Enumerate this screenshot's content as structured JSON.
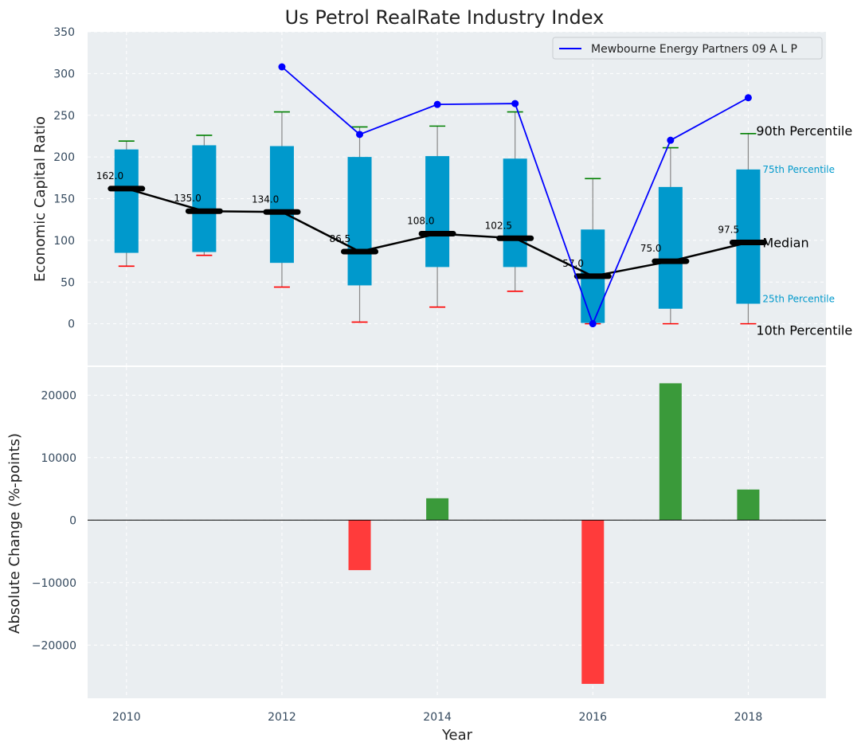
{
  "chart_data": {
    "type": "boxplot_with_line_and_bar",
    "title": "Us Petrol RealRate Industry Index",
    "xlabel": "Year",
    "x_ticks": [
      2010,
      2012,
      2014,
      2016,
      2018
    ],
    "xlim": [
      2009.5,
      2019
    ],
    "top": {
      "ylabel": "Economic Capital Ratio",
      "ylim": [
        -50,
        350
      ],
      "y_ticks": [
        0,
        50,
        100,
        150,
        200,
        250,
        300,
        350
      ],
      "years": [
        2010,
        2011,
        2012,
        2013,
        2014,
        2015,
        2016,
        2017,
        2018
      ],
      "p10": [
        69,
        82,
        44,
        2,
        20,
        39,
        0,
        0,
        0
      ],
      "p25": [
        85,
        86,
        73,
        46,
        68,
        68,
        1,
        18,
        24
      ],
      "median": [
        162.0,
        135.0,
        134.0,
        86.5,
        108.0,
        102.5,
        57.0,
        75.0,
        97.5
      ],
      "median_labels": [
        "162.0",
        "135.0",
        "134.0",
        "86.5",
        "108.0",
        "102.5",
        "57.0",
        "75.0",
        "97.5"
      ],
      "p75": [
        209,
        214,
        213,
        200,
        201,
        198,
        113,
        164,
        185
      ],
      "p90": [
        219,
        226,
        254,
        236,
        237,
        254,
        174,
        211,
        228
      ],
      "company_series": {
        "name": "Mewbourne Energy Partners 09 A L P",
        "color": "#0000ff",
        "years": [
          2012,
          2013,
          2014,
          2015,
          2016,
          2017,
          2018
        ],
        "values": [
          308,
          227,
          263,
          264,
          0,
          220,
          271
        ]
      },
      "legend": "Mewbourne Energy Partners 09 A L P",
      "legend_position": "top-right",
      "percentile_labels": {
        "p90": "90th Percentile",
        "p75": "75th Percentile",
        "median": "Median",
        "p25": "25th Percentile",
        "p10": "10th Percentile"
      },
      "colors": {
        "box": "#0099cc",
        "median": "#000000",
        "p90_cap": "#008000",
        "p10_cap": "#ff0000"
      }
    },
    "bottom": {
      "type": "bar",
      "ylabel": "Absolute Change (%-points)",
      "ylim": [
        -28500,
        24500
      ],
      "y_ticks": [
        -20000,
        -10000,
        0,
        10000,
        20000
      ],
      "y_tick_labels": [
        "−20000",
        "−10000",
        "0",
        "10000",
        "20000"
      ],
      "years": [
        2013,
        2014,
        2016,
        2017,
        2018
      ],
      "values": [
        -8000,
        3500,
        -26200,
        21900,
        4900
      ],
      "colors": {
        "positive": "#3a9a3a",
        "negative": "#ff3b3b"
      }
    }
  }
}
